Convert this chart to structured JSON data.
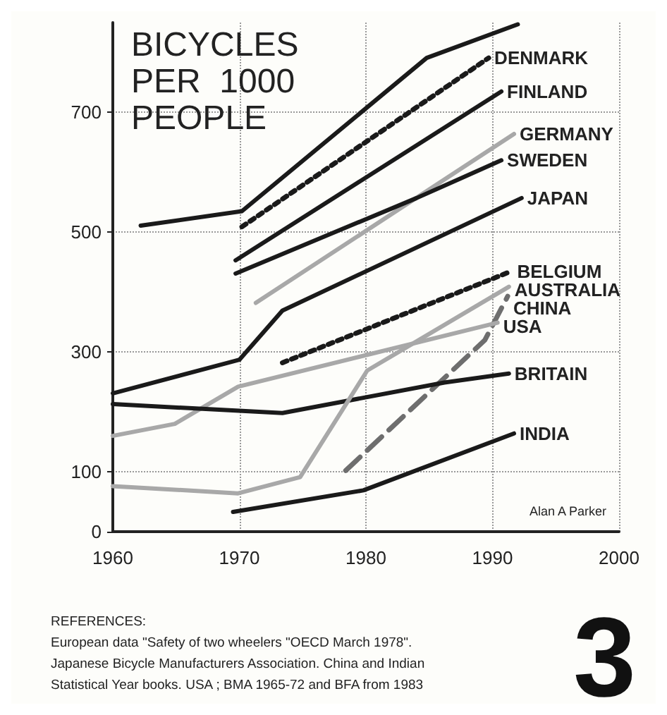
{
  "chart_data": {
    "type": "line",
    "title": "BICYCLES\nPER  1000\nPEOPLE",
    "xlim": [
      1960,
      2000
    ],
    "xticks": [
      1960,
      1970,
      1980,
      1990,
      2000
    ],
    "ylim": [
      0,
      850
    ],
    "yticks": [
      0,
      100,
      300,
      500,
      700
    ],
    "grid": true,
    "marker": "none",
    "line_style": "solid",
    "series": [
      {
        "color": "#1a1a1a",
        "x": [
          1962.2,
          1970.2,
          1984.8,
          1992
        ],
        "values": [
          511,
          535,
          791,
          847
        ]
      },
      {
        "name": "DENMARK",
        "color": "#1a1a1a",
        "line_style": "dotted",
        "x": [
          1970.2,
          1989.7
        ],
        "values": [
          509,
          791
        ]
      },
      {
        "name": "FINLAND",
        "color": "#1a1a1a",
        "x": [
          1969.7,
          1990.7
        ],
        "values": [
          453,
          735
        ]
      },
      {
        "name": "GERMANY",
        "color": "#a8a8a8",
        "x": [
          1971.3,
          1991.7
        ],
        "values": [
          382,
          664
        ]
      },
      {
        "name": "SWEDEN",
        "color": "#1a1a1a",
        "x": [
          1969.7,
          1984,
          1990.7
        ],
        "values": [
          431,
          557,
          620
        ]
      },
      {
        "name": "JAPAN",
        "color": "#1a1a1a",
        "x": [
          1960,
          1970,
          1973.4,
          1992.3
        ],
        "values": [
          231,
          287,
          369,
          557
        ]
      },
      {
        "name": "BELGIUM",
        "color": "#1a1a1a",
        "line_style": "dotted",
        "x": [
          1973.4,
          1991.5
        ],
        "values": [
          282,
          435
        ]
      },
      {
        "name": "CHINA",
        "color": "#6e6e6e",
        "line_style": "dashed",
        "x": [
          1978.4,
          1989.4,
          1991.2
        ],
        "values": [
          102,
          320,
          393
        ]
      },
      {
        "name": "USA",
        "color": "#a8a8a8",
        "x": [
          1960,
          1964.9,
          1969.9,
          1990.4
        ],
        "values": [
          160,
          180,
          242,
          349
        ]
      },
      {
        "name": "BRITAIN",
        "color": "#1a1a1a",
        "x": [
          1960,
          1973.4,
          1986.2,
          1991.3
        ],
        "values": [
          213,
          198,
          249,
          264
        ]
      },
      {
        "name": "INDIA",
        "color": "#1a1a1a",
        "x": [
          1969.5,
          1979.8,
          1991.7
        ],
        "values": [
          33,
          69,
          164
        ]
      },
      {
        "name": "AUSTRALIA",
        "color": "#a8a8a8",
        "x": [
          1960,
          1969.9,
          1974.8,
          1980.1,
          1991.3
        ],
        "values": [
          76,
          64,
          91,
          269,
          409
        ]
      }
    ],
    "annotations": [
      "Alan A Parker",
      "REFERENCES:",
      "European data \"Safety of two wheelers \"OECD March 1978\".",
      "Japanese Bicycle Manufacturers Association. China and Indian",
      "Statistical Year books. USA ; BMA 1965-72 and BFA from 1983",
      "3"
    ]
  }
}
